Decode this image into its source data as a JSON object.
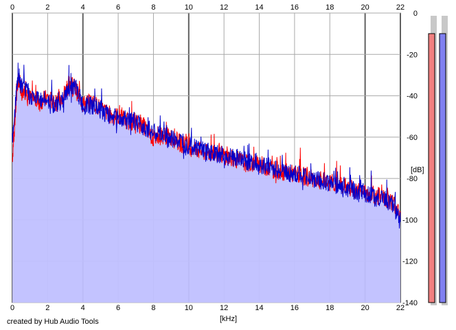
{
  "footer": {
    "credit": "created by Hub Audio Tools"
  },
  "chart_data": {
    "type": "area",
    "x_ticks": [
      0,
      2,
      4,
      6,
      8,
      10,
      12,
      14,
      16,
      18,
      20,
      22
    ],
    "y_ticks": [
      0,
      -20,
      -40,
      -60,
      -80,
      -100,
      -120,
      -140
    ],
    "xlim": [
      0,
      22
    ],
    "ylim": [
      -140,
      0
    ],
    "xlabel": "[kHz]",
    "ylabel": "[dB]",
    "grid": true,
    "grid_major_x": [
      0,
      4,
      10,
      20,
      22
    ],
    "x_ticks_top": true,
    "series": [
      {
        "color": "#ff0000",
        "x": [
          0,
          0.3,
          0.5,
          1.0,
          1.5,
          2.0,
          2.5,
          3.0,
          3.3,
          3.6,
          4.0,
          4.5,
          5.0,
          5.5,
          6.0,
          6.5,
          7.0,
          7.5,
          8.0,
          8.5,
          9.0,
          9.5,
          10.0,
          10.5,
          11.0,
          11.5,
          12.0,
          12.5,
          13.0,
          13.5,
          14.0,
          14.5,
          15.0,
          15.5,
          16.0,
          16.5,
          17.0,
          17.5,
          18.0,
          18.5,
          19.0,
          19.5,
          20.0,
          20.5,
          21.0,
          21.5,
          22.0
        ],
        "y": [
          -70,
          -33,
          -36,
          -41,
          -43,
          -41,
          -44,
          -38,
          -33,
          -37,
          -44,
          -43,
          -46,
          -49,
          -50,
          -52,
          -53,
          -55,
          -61,
          -59,
          -60,
          -63,
          -64,
          -66,
          -68,
          -67,
          -69,
          -70,
          -72,
          -73,
          -73,
          -75,
          -76,
          -77,
          -78,
          -79,
          -80,
          -81,
          -82,
          -83,
          -84,
          -86,
          -87,
          -88,
          -89,
          -91,
          -96
        ]
      },
      {
        "color": "#0000cc",
        "x": [
          0,
          0.3,
          0.5,
          1.0,
          1.5,
          2.0,
          2.5,
          3.0,
          3.3,
          3.6,
          4.0,
          4.5,
          5.0,
          5.5,
          6.0,
          6.5,
          7.0,
          7.5,
          8.0,
          8.5,
          9.0,
          9.5,
          10.0,
          10.5,
          11.0,
          11.5,
          12.0,
          12.5,
          13.0,
          13.5,
          14.0,
          14.5,
          15.0,
          15.5,
          16.0,
          16.5,
          17.0,
          17.5,
          18.0,
          18.5,
          19.0,
          19.5,
          20.0,
          20.5,
          21.0,
          21.5,
          22.0
        ],
        "y": [
          -60,
          -32,
          -35,
          -40,
          -42,
          -42,
          -45,
          -40,
          -35,
          -36,
          -45,
          -45,
          -47,
          -50,
          -51,
          -52,
          -53,
          -55,
          -58,
          -59,
          -61,
          -62,
          -64,
          -65,
          -67,
          -68,
          -69,
          -70,
          -71,
          -72,
          -74,
          -74,
          -76,
          -77,
          -78,
          -79,
          -80,
          -81,
          -82,
          -84,
          -85,
          -86,
          -87,
          -89,
          -90,
          -92,
          -101
        ]
      }
    ],
    "level_meters": [
      {
        "color": "#f08080",
        "value_db": 0
      },
      {
        "color": "#8080f0",
        "value_db": 0
      }
    ],
    "fill_color": "#c0c0ff"
  }
}
